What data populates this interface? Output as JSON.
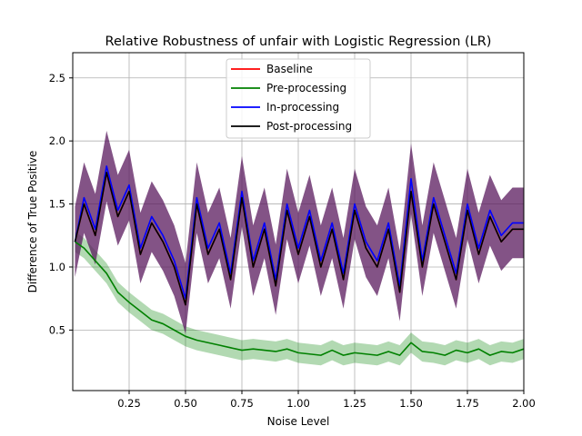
{
  "chart_data": {
    "type": "line",
    "title": "Relative Robustness of unfair with Logistic Regression (LR)",
    "xlabel": "Noise Level",
    "ylabel": "Difference of True Positive",
    "xlim": [
      0.0,
      2.0
    ],
    "ylim": [
      0.02,
      2.7
    ],
    "xticks": [
      "0.25",
      "0.50",
      "0.75",
      "1.00",
      "1.25",
      "1.50",
      "1.75",
      "2.00"
    ],
    "yticks": [
      "0.5",
      "1.0",
      "1.5",
      "2.0",
      "2.5"
    ],
    "grid": true,
    "legend_position": "top-center",
    "x": [
      0.01,
      0.05,
      0.1,
      0.15,
      0.2,
      0.25,
      0.3,
      0.35,
      0.4,
      0.45,
      0.5,
      0.55,
      0.6,
      0.65,
      0.7,
      0.75,
      0.8,
      0.85,
      0.9,
      0.95,
      1.0,
      1.05,
      1.1,
      1.15,
      1.2,
      1.25,
      1.3,
      1.35,
      1.4,
      1.45,
      1.5,
      1.55,
      1.6,
      1.65,
      1.7,
      1.75,
      1.8,
      1.85,
      1.9,
      1.95,
      2.0
    ],
    "series": [
      {
        "name": "Baseline",
        "color": "#ff0000",
        "values": [
          1.2,
          1.5,
          1.25,
          1.75,
          1.4,
          1.6,
          1.1,
          1.35,
          1.2,
          1.0,
          0.7,
          1.5,
          1.1,
          1.3,
          0.9,
          1.55,
          1.0,
          1.3,
          0.85,
          1.45,
          1.1,
          1.4,
          1.0,
          1.3,
          0.9,
          1.45,
          1.15,
          1.0,
          1.3,
          0.8,
          1.6,
          1.0,
          1.5,
          1.2,
          0.9,
          1.45,
          1.1,
          1.4,
          1.2,
          1.3,
          1.3
        ]
      },
      {
        "name": "Pre-processing",
        "color": "#008000",
        "band": 0.08,
        "values": [
          1.2,
          1.15,
          1.05,
          0.95,
          0.8,
          0.72,
          0.65,
          0.58,
          0.55,
          0.5,
          0.45,
          0.42,
          0.4,
          0.38,
          0.36,
          0.34,
          0.35,
          0.34,
          0.33,
          0.35,
          0.32,
          0.31,
          0.3,
          0.34,
          0.3,
          0.32,
          0.31,
          0.3,
          0.33,
          0.3,
          0.4,
          0.33,
          0.32,
          0.3,
          0.34,
          0.32,
          0.35,
          0.3,
          0.33,
          0.32,
          0.35
        ]
      },
      {
        "name": "In-processing",
        "color": "#0000ff",
        "band": 0.28,
        "values": [
          1.2,
          1.55,
          1.3,
          1.8,
          1.45,
          1.65,
          1.15,
          1.4,
          1.25,
          1.05,
          0.75,
          1.55,
          1.15,
          1.35,
          0.95,
          1.6,
          1.05,
          1.35,
          0.9,
          1.5,
          1.15,
          1.45,
          1.05,
          1.35,
          0.95,
          1.5,
          1.2,
          1.05,
          1.35,
          0.85,
          1.7,
          1.05,
          1.55,
          1.25,
          0.95,
          1.5,
          1.15,
          1.45,
          1.25,
          1.35,
          1.35
        ]
      },
      {
        "name": "Post-processing",
        "color": "#000000",
        "values": [
          1.2,
          1.5,
          1.25,
          1.75,
          1.4,
          1.6,
          1.1,
          1.35,
          1.2,
          1.0,
          0.7,
          1.5,
          1.1,
          1.3,
          0.9,
          1.55,
          1.0,
          1.3,
          0.85,
          1.45,
          1.1,
          1.4,
          1.0,
          1.3,
          0.9,
          1.45,
          1.15,
          1.0,
          1.3,
          0.8,
          1.6,
          1.0,
          1.5,
          1.2,
          0.9,
          1.45,
          1.1,
          1.4,
          1.2,
          1.3,
          1.3
        ]
      }
    ]
  }
}
